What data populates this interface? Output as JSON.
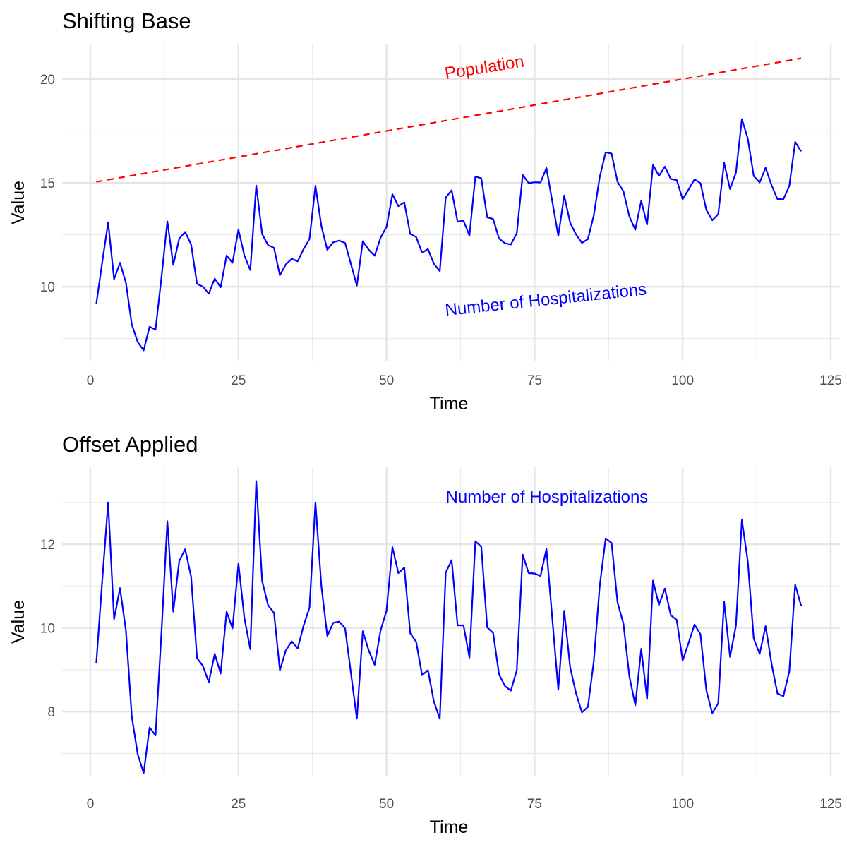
{
  "chart_data": [
    {
      "type": "line",
      "title": "Shifting Base",
      "xlabel": "Time",
      "ylabel": "Value",
      "xlim": [
        -5,
        125
      ],
      "ylim": [
        6.4,
        21.7
      ],
      "xticks": [
        0,
        25,
        50,
        75,
        100,
        125
      ],
      "yticks": [
        10,
        15,
        20
      ],
      "grid": true,
      "legend": "none",
      "series": [
        {
          "color": "#0000FF",
          "style": "solid",
          "x_start": 1,
          "values": [
            9.16,
            11.17,
            13.1,
            10.36,
            11.15,
            10.19,
            8.18,
            7.33,
            6.93,
            8.07,
            7.93,
            10.43,
            13.15,
            11.05,
            12.31,
            12.64,
            12.04,
            10.14,
            10.0,
            9.66,
            10.39,
            9.97,
            11.5,
            11.15,
            12.75,
            11.5,
            10.8,
            14.87,
            12.53,
            12.0,
            11.87,
            10.55,
            11.07,
            11.34,
            11.22,
            11.81,
            12.3,
            14.86,
            12.92,
            11.78,
            12.14,
            12.22,
            12.11,
            11.09,
            10.05,
            12.19,
            11.78,
            11.49,
            12.36,
            12.88,
            14.45,
            13.88,
            14.06,
            12.54,
            12.39,
            11.64,
            11.81,
            11.11,
            10.75,
            14.29,
            14.64,
            13.13,
            13.18,
            12.46,
            15.3,
            15.22,
            13.34,
            13.26,
            12.32,
            12.09,
            12.03,
            12.57,
            15.38,
            14.99,
            15.03,
            15.02,
            15.72,
            14.08,
            12.45,
            14.39,
            13.08,
            12.52,
            12.11,
            12.29,
            13.43,
            15.28,
            16.47,
            16.41,
            15.05,
            14.59,
            13.38,
            12.74,
            14.14,
            12.99,
            15.87,
            15.34,
            15.78,
            15.19,
            15.13,
            14.21,
            14.68,
            15.17,
            14.99,
            13.69,
            13.2,
            13.49,
            15.97,
            14.7,
            15.49,
            18.07,
            17.13,
            15.33,
            15.02,
            15.73,
            14.89,
            14.22,
            14.21,
            14.85,
            16.97,
            16.52
          ]
        },
        {
          "color": "#FF0000",
          "style": "dashed",
          "x": [
            1,
            120
          ],
          "values": [
            15.05,
            21.0
          ]
        }
      ],
      "annotations": [
        {
          "text": "Population",
          "x": 60,
          "y": 20.0,
          "color": "#FF0000"
        },
        {
          "text": "Number of Hospitalizations",
          "x": 60,
          "y": 8.6,
          "color": "#0000FF"
        }
      ]
    },
    {
      "type": "line",
      "title": "Offset Applied",
      "xlabel": "Time",
      "ylabel": "Value",
      "xlim": [
        -5,
        125
      ],
      "ylim": [
        6.45,
        13.84
      ],
      "xticks": [
        0,
        25,
        50,
        75,
        100,
        125
      ],
      "yticks": [
        8,
        10,
        12
      ],
      "grid": true,
      "legend": "none",
      "series": [
        {
          "color": "#0000FF",
          "style": "solid",
          "x_start": 1,
          "values": [
            9.16,
            11.12,
            13.0,
            10.21,
            10.95,
            9.94,
            7.88,
            6.98,
            6.53,
            7.62,
            7.43,
            9.88,
            12.55,
            10.39,
            11.6,
            11.88,
            11.23,
            9.28,
            9.09,
            8.7,
            9.38,
            8.91,
            10.39,
            9.99,
            11.54,
            10.24,
            9.49,
            13.51,
            11.12,
            10.54,
            10.36,
            8.99,
            9.46,
            9.68,
            9.51,
            10.05,
            10.49,
            13.0,
            11.0,
            9.81,
            10.12,
            10.15,
            9.99,
            8.92,
            7.83,
            9.92,
            9.46,
            9.12,
            9.94,
            10.41,
            11.93,
            11.31,
            11.44,
            9.87,
            9.67,
            8.87,
            8.99,
            8.24,
            7.83,
            11.32,
            11.62,
            10.06,
            10.06,
            9.29,
            12.07,
            11.94,
            10.01,
            9.88,
            8.89,
            8.61,
            8.5,
            8.99,
            11.75,
            11.31,
            11.3,
            11.24,
            11.89,
            10.2,
            8.52,
            10.41,
            9.06,
            8.44,
            7.98,
            8.11,
            9.2,
            11.0,
            12.14,
            12.03,
            10.61,
            10.1,
            8.84,
            8.15,
            9.5,
            8.3,
            11.13,
            10.55,
            10.94,
            10.3,
            10.19,
            9.22,
            9.64,
            10.08,
            9.85,
            8.5,
            7.96,
            8.2,
            10.63,
            9.31,
            10.05,
            12.58,
            11.59,
            9.74,
            9.38,
            10.04,
            9.15,
            8.43,
            8.37,
            8.96,
            11.03,
            10.53
          ]
        }
      ],
      "annotations": [
        {
          "text": "Number of Hospitalizations",
          "x": 60,
          "y": 13.0,
          "color": "#0000FF"
        }
      ]
    }
  ]
}
